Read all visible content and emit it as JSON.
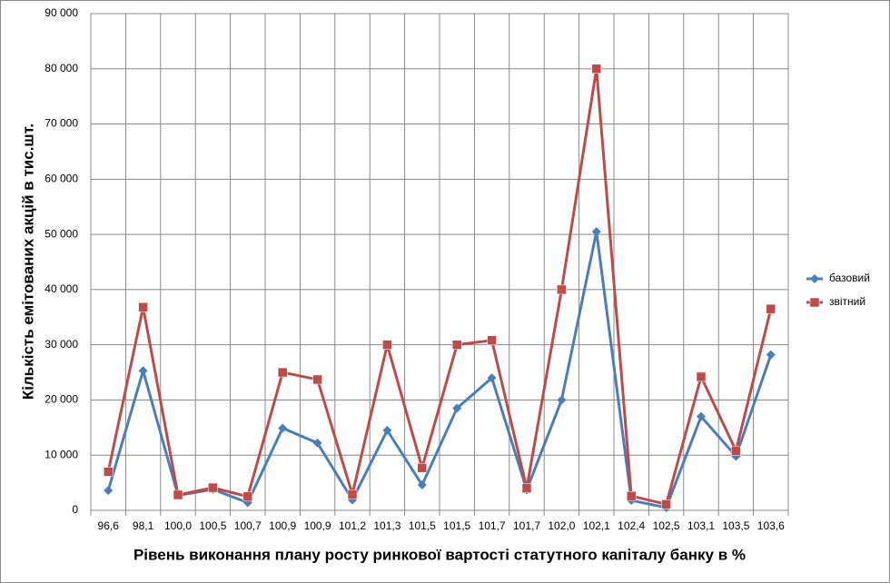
{
  "chart_data": {
    "type": "line",
    "x_label": "Рівень виконання плану росту ринкової вартості статутного капіталу банку в %",
    "y_label": "Кількість емітованих акцій в тис.шт.",
    "categories": [
      "96,6",
      "98,1",
      "100,0",
      "100,5",
      "100,7",
      "100,9",
      "100,9",
      "101,2",
      "101,3",
      "101,5",
      "101,5",
      "101,7",
      "101,7",
      "102,0",
      "102,1",
      "102,4",
      "102,5",
      "103,1",
      "103,5",
      "103,6"
    ],
    "series": [
      {
        "name": "базовий",
        "color": "#4a7ebb",
        "marker": "diamond",
        "values": [
          3600,
          25300,
          2700,
          3800,
          1400,
          14900,
          12200,
          1900,
          14500,
          4600,
          18500,
          24000,
          3700,
          20000,
          50500,
          1800,
          500,
          17000,
          9800,
          28200
        ]
      },
      {
        "name": "звітний",
        "color": "#be4b48",
        "marker": "square",
        "values": [
          7000,
          36800,
          2800,
          4100,
          2500,
          25000,
          23700,
          2900,
          30000,
          7700,
          30000,
          30800,
          4000,
          40000,
          80000,
          2600,
          1100,
          24200,
          10800,
          36500
        ]
      }
    ],
    "ylim": [
      0,
      90000
    ],
    "yticks": [
      0,
      {
        "value": 10000,
        "label": "10 000"
      },
      {
        "value": 20000,
        "label": "20 000"
      },
      {
        "value": 30000,
        "label": "30 000"
      },
      {
        "value": 40000,
        "label": "40 000"
      },
      {
        "value": 50000,
        "label": "50 000"
      },
      {
        "value": 60000,
        "label": "60 000"
      },
      {
        "value": 70000,
        "label": "70 000"
      },
      {
        "value": 80000,
        "label": "80 000"
      },
      {
        "value": 90000,
        "label": "90 000"
      }
    ],
    "grid": true,
    "legend": "right"
  }
}
